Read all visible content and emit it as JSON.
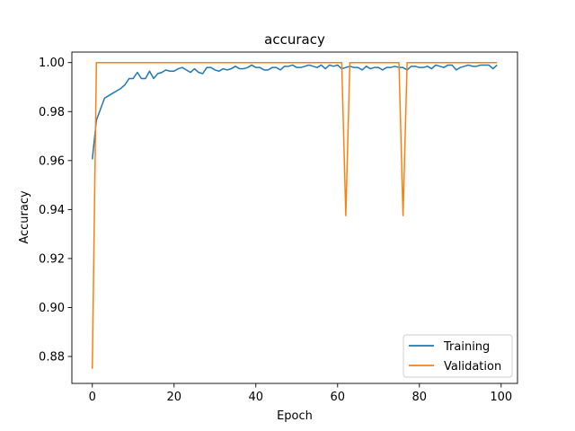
{
  "chart_data": {
    "type": "line",
    "title": "accuracy",
    "xlabel": "Epoch",
    "ylabel": "Accuracy",
    "xlim": [
      -5,
      104
    ],
    "ylim": [
      0.869,
      1.0043
    ],
    "xticks": [
      0,
      20,
      40,
      60,
      80,
      100
    ],
    "yticks": [
      0.88,
      0.9,
      0.92,
      0.94,
      0.96,
      0.98,
      1.0
    ],
    "ytick_labels": [
      "0.88",
      "0.90",
      "0.92",
      "0.94",
      "0.96",
      "0.98",
      "1.00"
    ],
    "legend_position": "lower-right",
    "series": [
      {
        "name": "Training",
        "color": "#1f77b4",
        "x": [
          0,
          1,
          2,
          3,
          4,
          5,
          6,
          7,
          8,
          9,
          10,
          11,
          12,
          13,
          14,
          15,
          16,
          17,
          18,
          19,
          20,
          21,
          22,
          23,
          24,
          25,
          26,
          27,
          28,
          29,
          30,
          31,
          32,
          33,
          34,
          35,
          36,
          37,
          38,
          39,
          40,
          41,
          42,
          43,
          44,
          45,
          46,
          47,
          48,
          49,
          50,
          51,
          52,
          53,
          54,
          55,
          56,
          57,
          58,
          59,
          60,
          61,
          62,
          63,
          64,
          65,
          66,
          67,
          68,
          69,
          70,
          71,
          72,
          73,
          74,
          75,
          76,
          77,
          78,
          79,
          80,
          81,
          82,
          83,
          84,
          85,
          86,
          87,
          88,
          89,
          90,
          91,
          92,
          93,
          94,
          95,
          96,
          97,
          98,
          99
        ],
        "y": [
          0.9605,
          0.9765,
          0.981,
          0.9855,
          0.9865,
          0.9875,
          0.9885,
          0.9895,
          0.991,
          0.9935,
          0.9935,
          0.996,
          0.9935,
          0.9935,
          0.9965,
          0.9935,
          0.9955,
          0.996,
          0.997,
          0.9965,
          0.9965,
          0.9975,
          0.998,
          0.997,
          0.996,
          0.9975,
          0.996,
          0.9955,
          0.998,
          0.998,
          0.997,
          0.9965,
          0.9975,
          0.997,
          0.9975,
          0.9985,
          0.9975,
          0.9975,
          0.998,
          0.999,
          0.998,
          0.998,
          0.997,
          0.997,
          0.998,
          0.998,
          0.997,
          0.9985,
          0.9985,
          0.999,
          0.998,
          0.998,
          0.9985,
          0.999,
          0.9985,
          0.998,
          0.999,
          0.9975,
          0.999,
          0.9985,
          0.999,
          0.9975,
          0.998,
          0.9985,
          0.998,
          0.998,
          0.997,
          0.9985,
          0.9975,
          0.998,
          0.998,
          0.997,
          0.998,
          0.998,
          0.9985,
          0.998,
          0.998,
          0.997,
          0.9985,
          0.9985,
          0.998,
          0.998,
          0.9985,
          0.9975,
          0.999,
          0.9985,
          0.998,
          0.999,
          0.999,
          0.997,
          0.998,
          0.9985,
          0.999,
          0.9985,
          0.9985,
          0.999,
          0.999,
          0.999,
          0.9975,
          0.999
        ]
      },
      {
        "name": "Validation",
        "color": "#ff7f0e",
        "x": [
          0,
          1,
          61,
          62,
          63,
          75,
          76,
          77,
          99
        ],
        "y": [
          0.875,
          1.0,
          1.0,
          0.9375,
          1.0,
          1.0,
          0.9375,
          1.0,
          1.0
        ]
      }
    ]
  }
}
